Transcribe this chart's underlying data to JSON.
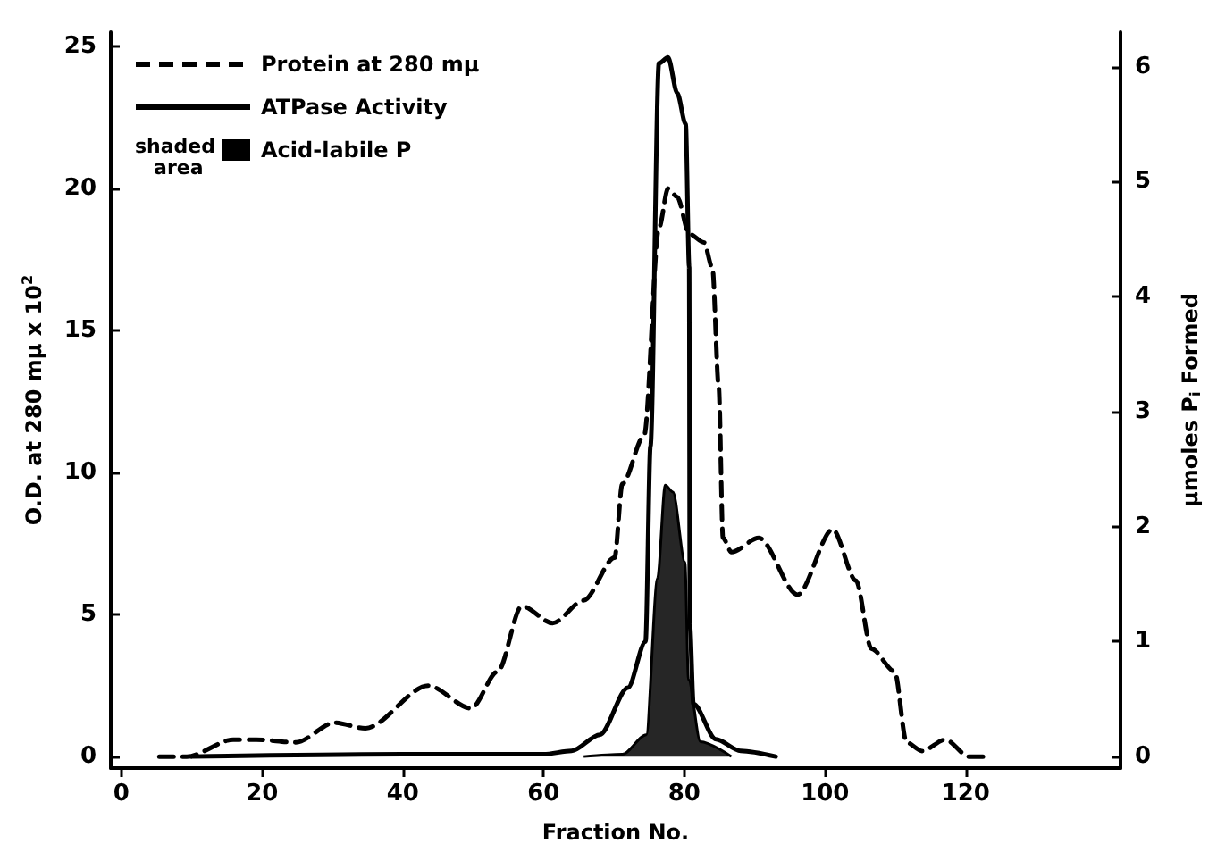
{
  "chart_data": {
    "type": "line",
    "xlabel": "Fraction No.",
    "ylabel": "O.D. at 280 mµ x 10$^{2}$",
    "y2label": "µmoles P$_{i}$ Formed",
    "xlim": [
      -1.5,
      142
    ],
    "xticks": [
      0,
      20,
      40,
      60,
      80,
      100,
      120
    ],
    "ylim": [
      -0.4,
      25.5
    ],
    "yticks": [
      0,
      5,
      10,
      15,
      20,
      25
    ],
    "y2lim": [
      -0.1,
      6.3
    ],
    "y2ticks": [
      0,
      1,
      2,
      3,
      4,
      5,
      6
    ],
    "grid": false,
    "legend": "top left",
    "marker": "none",
    "annotations": [
      "shaded area"
    ],
    "series": [
      {
        "name": "Protein at 280 mµ",
        "color": "#000000",
        "line_style": "dashed",
        "x": [
          5.4,
          9.3,
          15.9,
          19.2,
          24.8,
          30.3,
          34.7,
          43.6,
          49.7,
          53.5,
          56.9,
          61.3,
          65.7,
          70.1,
          71.2,
          74.3,
          76.4,
          77.7,
          79.0,
          80.7,
          82.8,
          84.0,
          84.9,
          85.5,
          86.7,
          90.6,
          96.1,
          101.1,
          104.4,
          106.6,
          109.9,
          111.6,
          113.8,
          117.1,
          120.5,
          122.7
        ],
        "values": [
          0,
          0,
          0.6,
          0.6,
          0.5,
          1.2,
          1.0,
          2.5,
          1.7,
          3.0,
          5.3,
          4.7,
          5.5,
          7.0,
          9.6,
          11.3,
          18.6,
          20.0,
          19.7,
          18.4,
          18.1,
          17.2,
          13.0,
          7.7,
          7.2,
          7.7,
          5.7,
          8.0,
          6.2,
          3.8,
          3.0,
          0.5,
          0.2,
          0.6,
          0,
          0
        ]
      },
      {
        "name": "ATPase Activity",
        "color": "#000000",
        "line_style": "solid",
        "axis": "y2",
        "x": [
          10,
          40,
          60,
          64,
          68,
          72,
          74.5,
          75.2,
          76.4,
          77.7,
          79.0,
          80.2,
          80.7,
          80.8,
          81.3,
          84.5,
          88,
          93
        ],
        "values": [
          0,
          0.02,
          0.02,
          0.05,
          0.19,
          0.6,
          1.0,
          2.7,
          6.03,
          6.08,
          5.77,
          5.5,
          4.26,
          1.14,
          0.46,
          0.15,
          0.05,
          0
        ]
      },
      {
        "name": "Acid-labile P",
        "type": "area",
        "color": "#000000",
        "axis": "y2",
        "x": [
          65.7,
          71.2,
          74.6,
          76.2,
          77.3,
          78.4,
          80.1,
          80.6,
          82.3,
          86.7
        ],
        "values": [
          0,
          0.02,
          0.19,
          1.55,
          2.36,
          2.3,
          1.69,
          0.67,
          0.13,
          0
        ]
      }
    ]
  }
}
